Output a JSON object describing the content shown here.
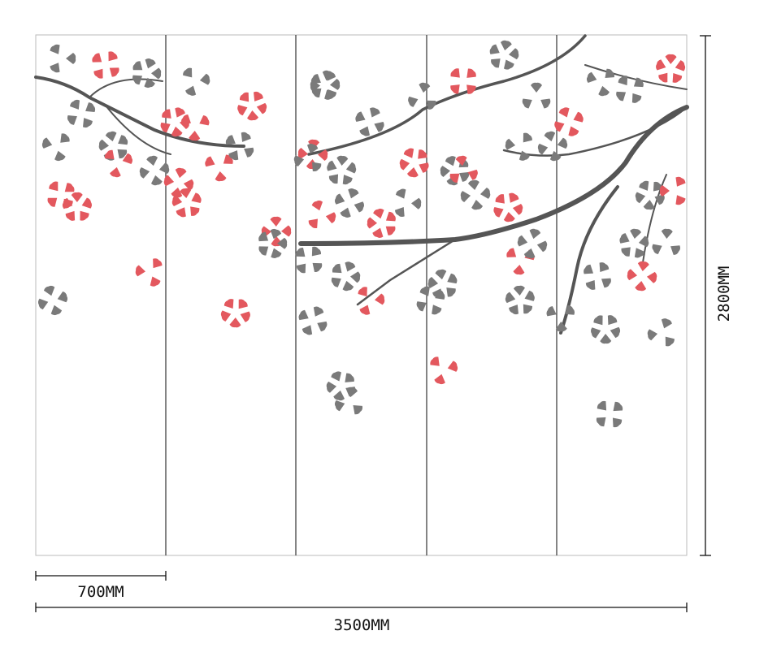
{
  "dimensions": {
    "panel_width": "700MM",
    "total_width": "3500MM",
    "height": "2800MM"
  }
}
